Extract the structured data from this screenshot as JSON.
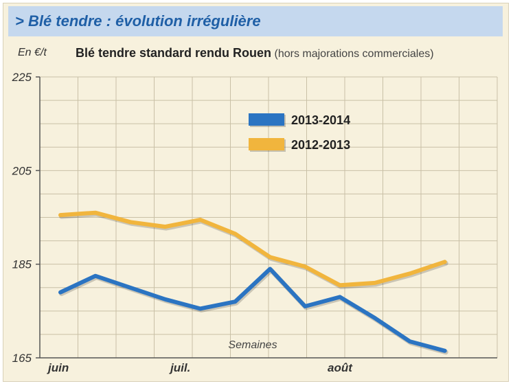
{
  "header": {
    "title": "> Blé tendre : évolution irrégulière",
    "unit": "En €/t",
    "subtitle": "Blé tendre standard rendu Rouen",
    "subtitle_note": "(hors majorations commerciales)"
  },
  "colors": {
    "title_bar": "#c5d8ee",
    "title_text": "#1f5fa6",
    "panel_bg": "#f7f1dd",
    "grid": "#c9c0a6",
    "series_2013_2014": "#2b74c2",
    "series_2012_2013": "#f1b53d"
  },
  "chart_data": {
    "type": "line",
    "xlabel": "Semaines",
    "ylabel": "En €/t",
    "ylim": [
      165,
      225
    ],
    "yticks": [
      165,
      185,
      205,
      225
    ],
    "xlim": [
      0,
      12.5
    ],
    "x_labels": [
      {
        "label": "juin",
        "x": 0
      },
      {
        "label": "juil.",
        "x": 3.5
      },
      {
        "label": "août",
        "x": 8
      }
    ],
    "grid": true,
    "legend_position": "top-center",
    "series": [
      {
        "name": "2013-2014",
        "color": "#2b74c2",
        "x": [
          0,
          1,
          2,
          3,
          4,
          5,
          6,
          7,
          8,
          9,
          10,
          11
        ],
        "values": [
          179,
          182.5,
          180,
          177.5,
          175.5,
          177,
          184,
          176,
          178,
          173.5,
          168.5,
          166.5
        ]
      },
      {
        "name": "2012-2013",
        "color": "#f1b53d",
        "x": [
          0,
          1,
          2,
          3,
          4,
          5,
          6,
          7,
          8,
          9,
          10,
          11
        ],
        "values": [
          195.5,
          196,
          194,
          193,
          194.5,
          191.5,
          186.5,
          184.5,
          180.5,
          181,
          183,
          185.5
        ]
      }
    ]
  }
}
